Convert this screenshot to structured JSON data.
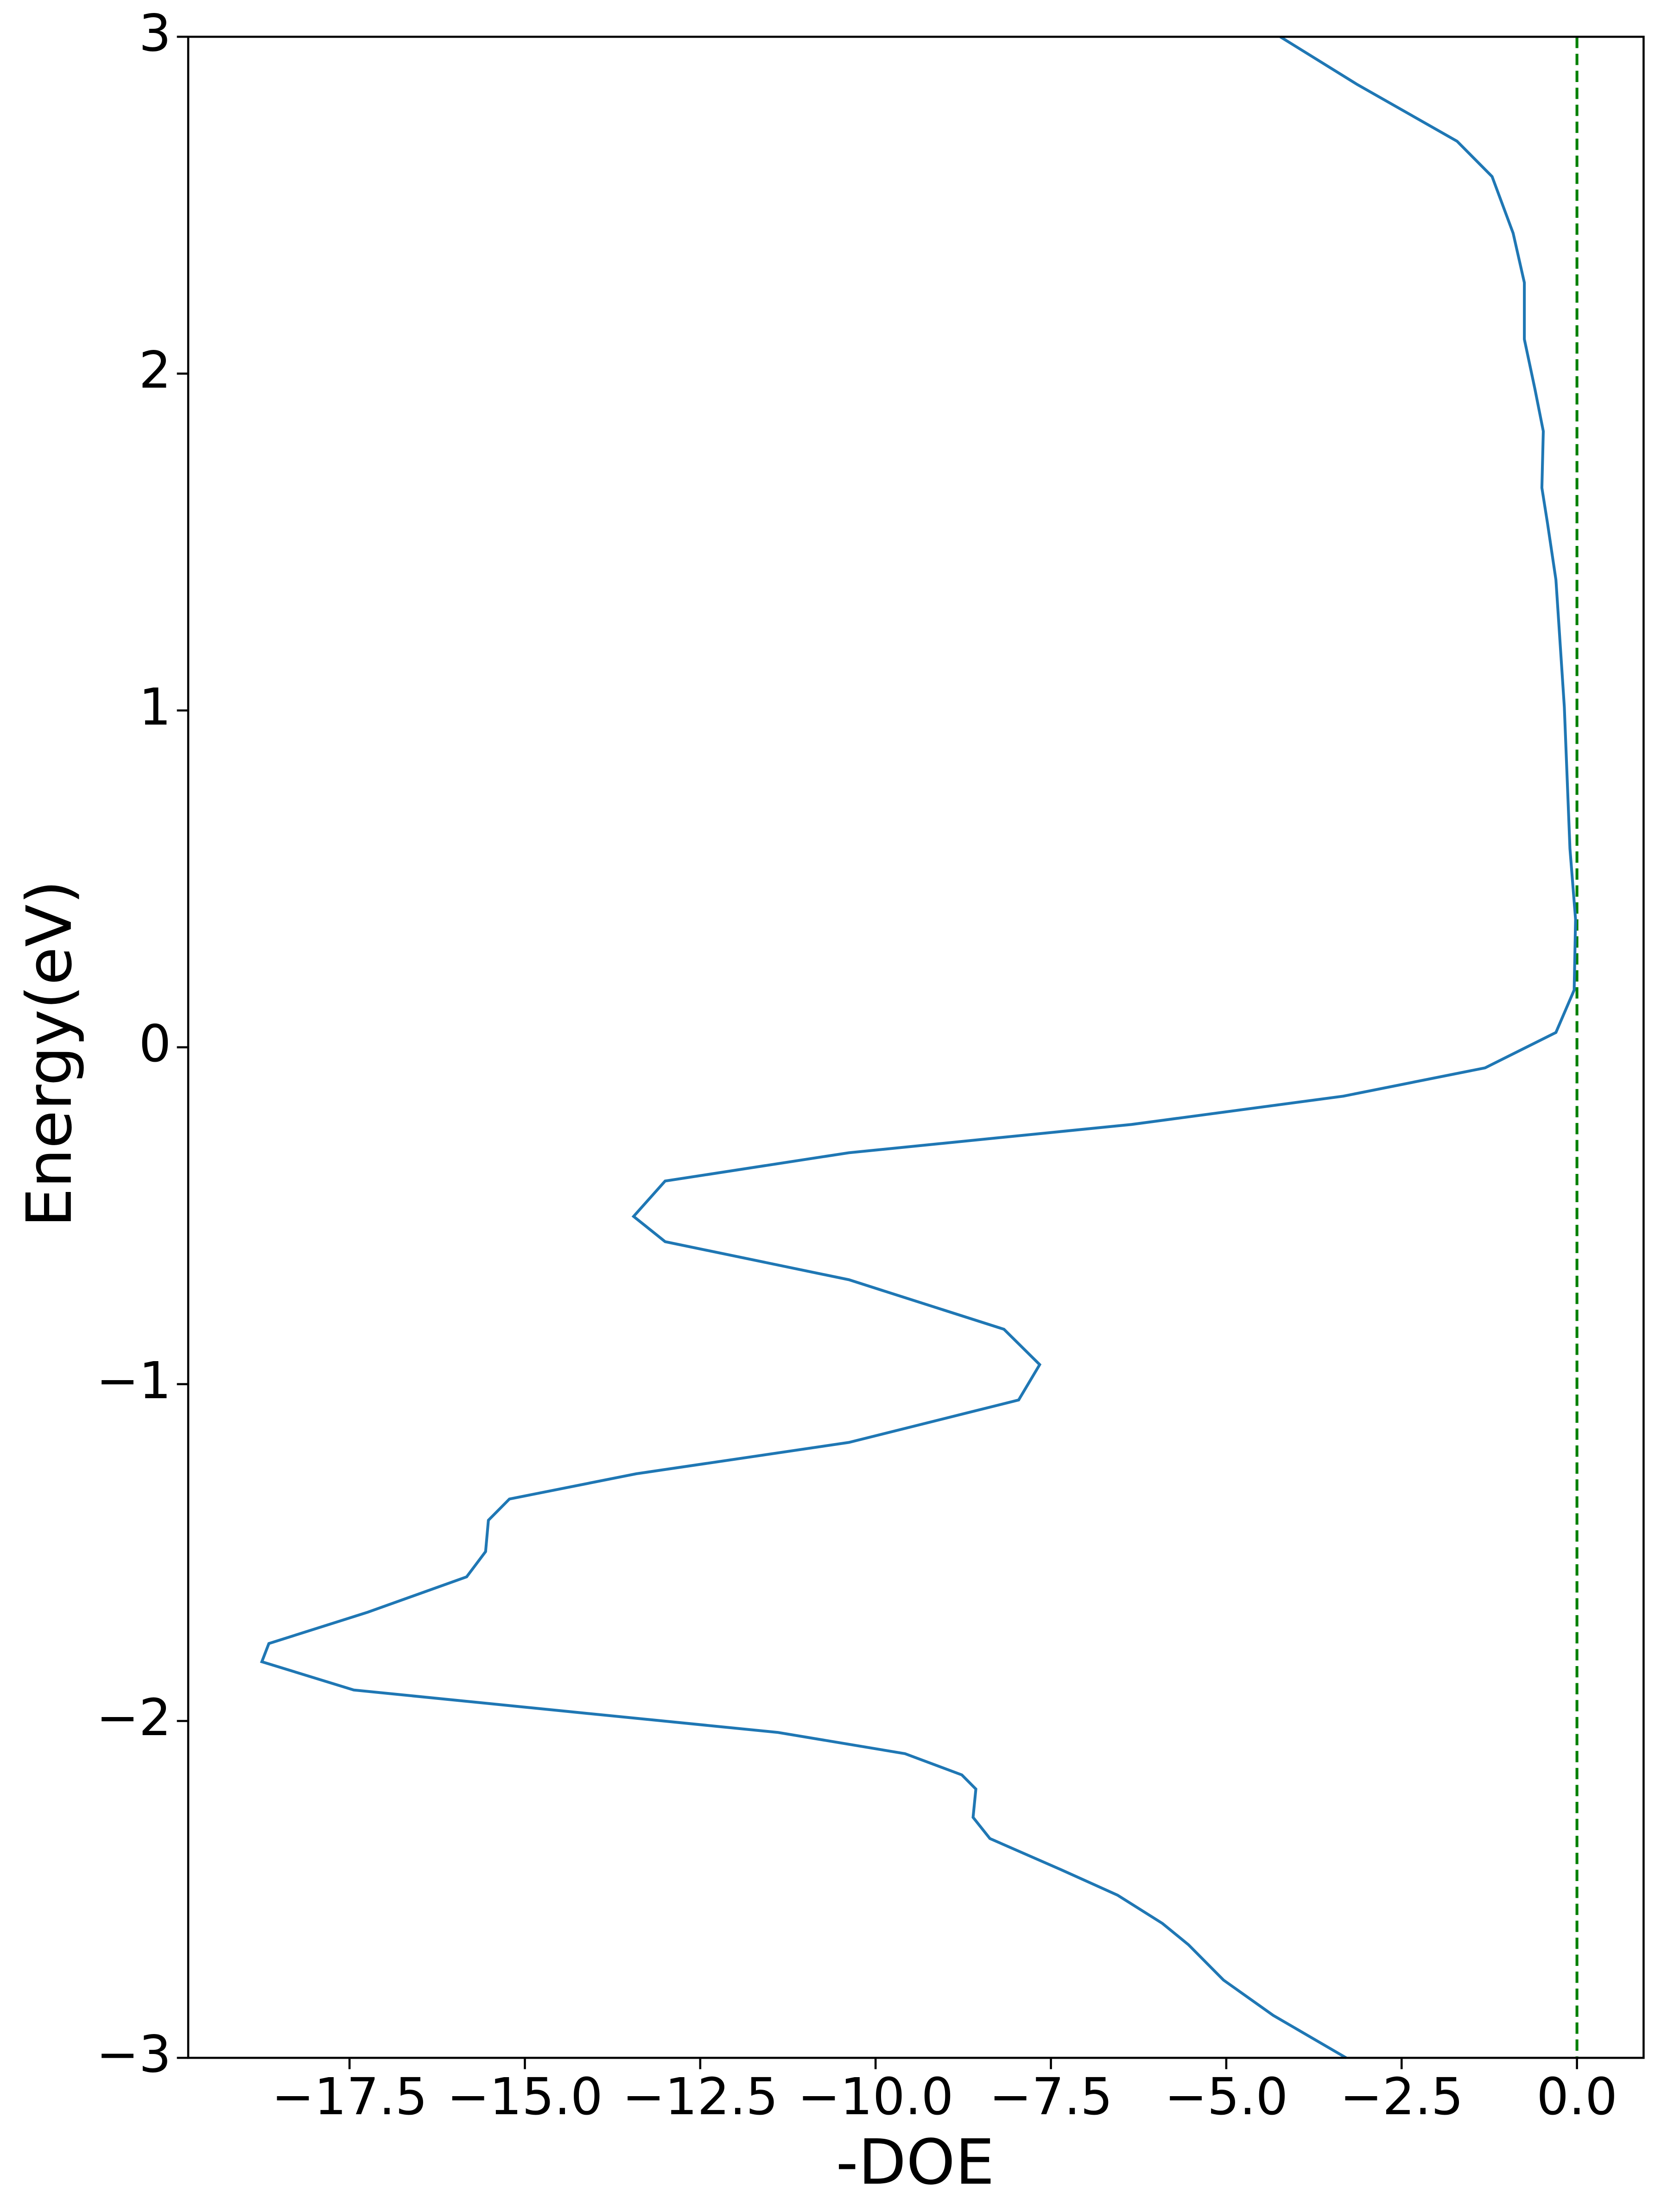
{
  "chart_data": {
    "type": "line",
    "xlabel": "-DOE",
    "ylabel": "Energy(eV)",
    "xlim": [
      -19.8,
      0.95
    ],
    "ylim": [
      -3,
      3
    ],
    "xticks": [
      {
        "value": -17.5,
        "label": "−17.5"
      },
      {
        "value": -15,
        "label": "−15.0"
      },
      {
        "value": -12.5,
        "label": "−12.5"
      },
      {
        "value": -10,
        "label": "−10.0"
      },
      {
        "value": -7.5,
        "label": "−7.5"
      },
      {
        "value": -5,
        "label": "−5.0"
      },
      {
        "value": -2.5,
        "label": "−2.5"
      },
      {
        "value": 0,
        "label": "0.0"
      }
    ],
    "yticks": [
      {
        "value": -3,
        "label": "−3"
      },
      {
        "value": -2,
        "label": "−2"
      },
      {
        "value": -1,
        "label": "−1"
      },
      0,
      1,
      2,
      3
    ],
    "vline": {
      "x": 0,
      "color": "#008000",
      "dashed": true
    },
    "series": [
      {
        "color": "#1f77b4",
        "x": [
          -3.29,
          -4.33,
          -5.04,
          -5.54,
          -5.91,
          -6.55,
          -7.36,
          -8.37,
          -8.61,
          -8.57,
          -8.77,
          -9.58,
          -11.39,
          -14.42,
          -17.44,
          -18.75,
          -18.65,
          -17.24,
          -15.83,
          -15.56,
          -15.52,
          -15.22,
          -13.41,
          -10.38,
          -7.96,
          -7.66,
          -8.17,
          -10.38,
          -13.0,
          -13.45,
          -13.0,
          -10.38,
          -6.35,
          -3.33,
          -1.31,
          -0.3,
          -0.04,
          -0.02,
          -0.1,
          -0.18,
          -0.26,
          -0.3,
          -0.42,
          -0.5,
          -0.48,
          -0.6,
          -0.75,
          -0.75,
          -0.91,
          -1.21,
          -1.71,
          -3.13,
          -4.23
        ],
        "values": [
          -3.0,
          -2.874,
          -2.769,
          -2.664,
          -2.601,
          -2.517,
          -2.441,
          -2.349,
          -2.286,
          -2.202,
          -2.16,
          -2.097,
          -2.034,
          -1.971,
          -1.908,
          -1.824,
          -1.77,
          -1.677,
          -1.572,
          -1.497,
          -1.404,
          -1.341,
          -1.266,
          -1.173,
          -1.047,
          -0.942,
          -0.837,
          -0.69,
          -0.577,
          -0.502,
          -0.397,
          -0.313,
          -0.229,
          -0.145,
          -0.061,
          0.044,
          0.17,
          0.38,
          0.59,
          1.01,
          1.262,
          1.388,
          1.556,
          1.661,
          1.829,
          1.955,
          2.102,
          2.27,
          2.417,
          2.585,
          2.69,
          2.858,
          3.0
        ]
      }
    ]
  }
}
